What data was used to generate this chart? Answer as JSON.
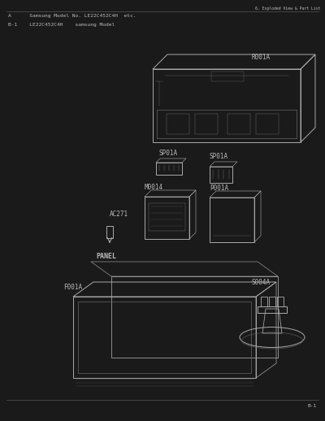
{
  "bg_color": "#1a1a1a",
  "draw_bg": "#1a1a1a",
  "text_color": "#bbbbbb",
  "line_color": "#888888",
  "header_line_color": "#555555",
  "title_top_right": "6. Exploded View & Part List",
  "header_line1": "A      Samsung Model No. LE22C452C4H  etc.",
  "header_line2": "B-1    LE22C452C4H    samsung Model",
  "footer_text": "B-1",
  "comp_color": "#aaaaaa",
  "comp_lw": 0.7
}
